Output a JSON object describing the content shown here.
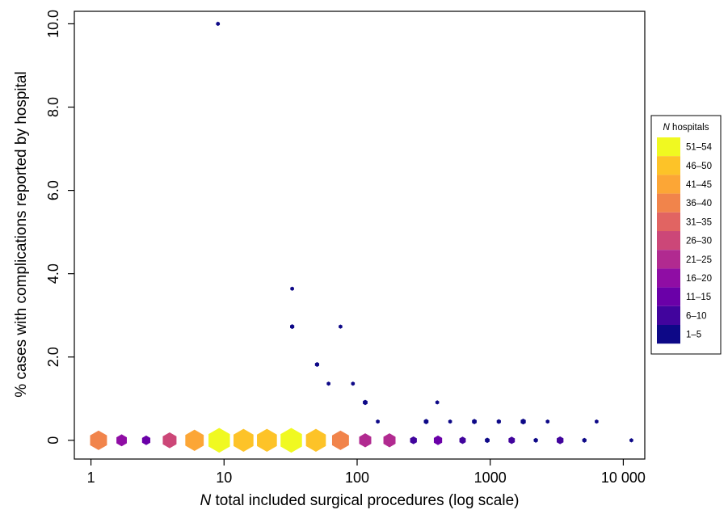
{
  "chart_data": {
    "type": "scatter",
    "marker": "hexagon",
    "xscale": "log",
    "xlabel_prefix": "N",
    "xlabel_rest": " total included surgical procedures (log scale)",
    "ylabel": "% cases with complications reported by hospital",
    "xlim": [
      0.75,
      14500
    ],
    "ylim": [
      -0.45,
      10.3
    ],
    "xticks": [
      {
        "value": 1,
        "label": "1"
      },
      {
        "value": 10,
        "label": "10"
      },
      {
        "value": 100,
        "label": "100"
      },
      {
        "value": 1000,
        "label": "1000"
      },
      {
        "value": 10000,
        "label": "10 000"
      }
    ],
    "yticks": [
      {
        "value": 0,
        "label": "0"
      },
      {
        "value": 2,
        "label": "2.0"
      },
      {
        "value": 4,
        "label": "4.0"
      },
      {
        "value": 6,
        "label": "6.0"
      },
      {
        "value": 8,
        "label": "8.0"
      },
      {
        "value": 10,
        "label": "10.0"
      }
    ],
    "points": [
      {
        "x": 1.14,
        "y": 0,
        "n": 38
      },
      {
        "x": 1.7,
        "y": 0,
        "n": 18
      },
      {
        "x": 2.6,
        "y": 0,
        "n": 12
      },
      {
        "x": 3.9,
        "y": 0,
        "n": 28
      },
      {
        "x": 6.0,
        "y": 0,
        "n": 43
      },
      {
        "x": 9.2,
        "y": 0,
        "n": 53
      },
      {
        "x": 14,
        "y": 0,
        "n": 48
      },
      {
        "x": 21,
        "y": 0,
        "n": 48
      },
      {
        "x": 32,
        "y": 0,
        "n": 53
      },
      {
        "x": 49,
        "y": 0,
        "n": 48
      },
      {
        "x": 75,
        "y": 0,
        "n": 38
      },
      {
        "x": 115,
        "y": 0,
        "n": 23
      },
      {
        "x": 175,
        "y": 0,
        "n": 23
      },
      {
        "x": 265,
        "y": 0,
        "n": 8
      },
      {
        "x": 405,
        "y": 0,
        "n": 12
      },
      {
        "x": 620,
        "y": 0,
        "n": 7
      },
      {
        "x": 950,
        "y": 0,
        "n": 3
      },
      {
        "x": 1450,
        "y": 0,
        "n": 7
      },
      {
        "x": 2200,
        "y": 0,
        "n": 2
      },
      {
        "x": 3350,
        "y": 0,
        "n": 8
      },
      {
        "x": 5100,
        "y": 0,
        "n": 2
      },
      {
        "x": 11500,
        "y": 0,
        "n": 1
      },
      {
        "x": 9,
        "y": 10.0,
        "n": 1
      },
      {
        "x": 32.5,
        "y": 3.64,
        "n": 1
      },
      {
        "x": 32.5,
        "y": 2.73,
        "n": 2
      },
      {
        "x": 75,
        "y": 2.73,
        "n": 1
      },
      {
        "x": 50,
        "y": 1.82,
        "n": 2
      },
      {
        "x": 61,
        "y": 1.36,
        "n": 1
      },
      {
        "x": 93,
        "y": 1.36,
        "n": 1
      },
      {
        "x": 115,
        "y": 0.91,
        "n": 3
      },
      {
        "x": 143,
        "y": 0.45,
        "n": 1
      },
      {
        "x": 330,
        "y": 0.45,
        "n": 3
      },
      {
        "x": 400,
        "y": 0.91,
        "n": 1
      },
      {
        "x": 500,
        "y": 0.45,
        "n": 1
      },
      {
        "x": 760,
        "y": 0.45,
        "n": 3
      },
      {
        "x": 1160,
        "y": 0.45,
        "n": 2
      },
      {
        "x": 1770,
        "y": 0.45,
        "n": 4
      },
      {
        "x": 2700,
        "y": 0.45,
        "n": 1
      },
      {
        "x": 6300,
        "y": 0.45,
        "n": 1
      }
    ],
    "legend": {
      "title_prefix": "N",
      "title_rest": " hospitals",
      "position": "right",
      "entries": [
        {
          "label": "51–54",
          "color": "#f0f921"
        },
        {
          "label": "46–50",
          "color": "#fdc328"
        },
        {
          "label": "41–45",
          "color": "#fca636"
        },
        {
          "label": "36–40",
          "color": "#f1844b"
        },
        {
          "label": "31–35",
          "color": "#e16462"
        },
        {
          "label": "26–30",
          "color": "#cc4778"
        },
        {
          "label": "21–25",
          "color": "#b12a90"
        },
        {
          "label": "16–20",
          "color": "#8f0da4"
        },
        {
          "label": "11–15",
          "color": "#6a00a8"
        },
        {
          "label": "6–10",
          "color": "#41049d"
        },
        {
          "label": "1–5",
          "color": "#0d0887"
        }
      ]
    }
  }
}
